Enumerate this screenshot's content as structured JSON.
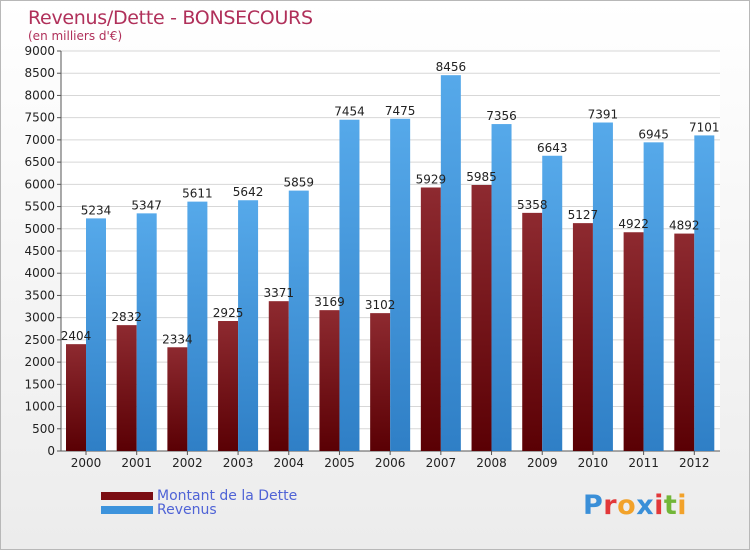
{
  "chart_data": {
    "type": "bar",
    "title": "Revenus/Dette - BONSECOURS",
    "subtitle": "(en milliers d'€)",
    "categories": [
      "2000",
      "2001",
      "2002",
      "2003",
      "2004",
      "2005",
      "2006",
      "2007",
      "2008",
      "2009",
      "2010",
      "2011",
      "2012"
    ],
    "series": [
      {
        "name": "Montant de la Dette",
        "color": "#7a0d12",
        "values": [
          2404,
          2832,
          2334,
          2925,
          3371,
          3169,
          3102,
          5929,
          5985,
          5358,
          5127,
          4922,
          4892
        ]
      },
      {
        "name": "Revenus",
        "color": "#3d93dc",
        "values": [
          5234,
          5347,
          5611,
          5642,
          5859,
          7454,
          7475,
          8456,
          7356,
          6643,
          7391,
          6945,
          7101
        ]
      }
    ],
    "ylim": [
      0,
      9000
    ],
    "yticks": [
      0,
      500,
      1000,
      1500,
      2000,
      2500,
      3000,
      3500,
      4000,
      4500,
      5000,
      5500,
      6000,
      6500,
      7000,
      7500,
      8000,
      8500,
      9000
    ],
    "xlabel": "",
    "ylabel": "",
    "grid": true,
    "legend_position": "bottom-left"
  },
  "branding": {
    "logo_text": "Proxiti",
    "logo_letters": [
      {
        "ch": "P",
        "color": "#3a8fd8"
      },
      {
        "ch": "r",
        "color": "#e2383a"
      },
      {
        "ch": "o",
        "color": "#f2a22a"
      },
      {
        "ch": "x",
        "color": "#3a8fd8"
      },
      {
        "ch": "i",
        "color": "#e2383a"
      },
      {
        "ch": "t",
        "color": "#72b638"
      },
      {
        "ch": "i",
        "color": "#f2a22a"
      }
    ]
  }
}
